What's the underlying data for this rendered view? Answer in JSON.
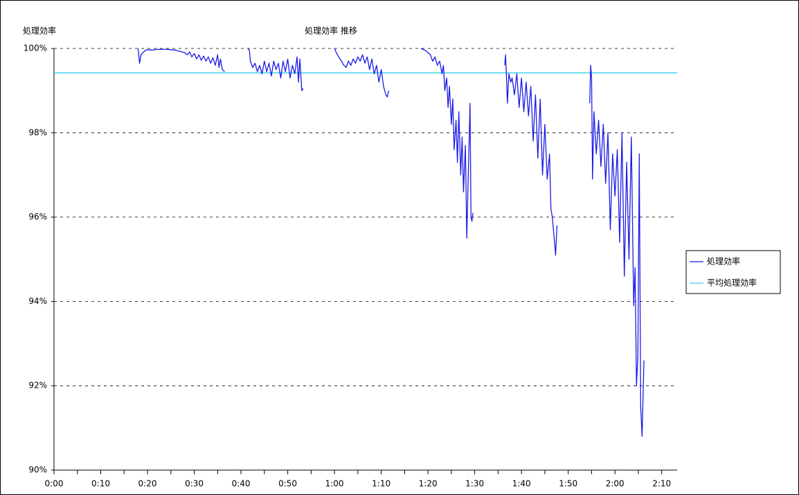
{
  "chart_data": {
    "type": "line",
    "title": "処理効率 推移",
    "y_label": "処理効率",
    "xlim": [
      0,
      133.3
    ],
    "xticks": [
      {
        "value": 0,
        "label": "0:00"
      },
      {
        "value": 10,
        "label": "0:10"
      },
      {
        "value": 20,
        "label": "0:20"
      },
      {
        "value": 30,
        "label": "0:30"
      },
      {
        "value": 40,
        "label": "0:40"
      },
      {
        "value": 50,
        "label": "0:50"
      },
      {
        "value": 60,
        "label": "1:00"
      },
      {
        "value": 70,
        "label": "1:10"
      },
      {
        "value": 80,
        "label": "1:20"
      },
      {
        "value": 90,
        "label": "1:30"
      },
      {
        "value": 100,
        "label": "1:40"
      },
      {
        "value": 110,
        "label": "1:50"
      },
      {
        "value": 120,
        "label": "2:00"
      },
      {
        "value": 130,
        "label": "2:10"
      }
    ],
    "xminorticks": [
      5,
      15,
      25,
      35,
      45,
      55,
      65,
      75,
      85,
      95,
      105,
      115,
      125
    ],
    "ylim": [
      90,
      100
    ],
    "yticks": [
      {
        "value": 90,
        "label": "90%"
      },
      {
        "value": 92,
        "label": "92%"
      },
      {
        "value": 94,
        "label": "94%"
      },
      {
        "value": 96,
        "label": "96%"
      },
      {
        "value": 98,
        "label": "98%"
      },
      {
        "value": 100,
        "label": "100%"
      }
    ],
    "grid": true,
    "legend": "right",
    "series": [
      {
        "name": "処理効率",
        "color": "#1a1ae6",
        "x": [
          18,
          18.3,
          18.6,
          19,
          19.5,
          20,
          21,
          22,
          23,
          24,
          25,
          26,
          27,
          28,
          28.5,
          29,
          29.5,
          30,
          30.5,
          31,
          31.5,
          32,
          32.5,
          33,
          33.5,
          34,
          34.5,
          35,
          35.3,
          35.6,
          36,
          36.5,
          39,
          41.5,
          41.8,
          42,
          42.5,
          43,
          43.5,
          44,
          44.5,
          45,
          45.5,
          46,
          46.5,
          47,
          47.5,
          48,
          48.5,
          49,
          49.5,
          50,
          50.5,
          51,
          51.5,
          52,
          52.3,
          52.6,
          53,
          53.3,
          56,
          60,
          60.4,
          61,
          61.5,
          62,
          62.5,
          63,
          63.5,
          64,
          64.5,
          65,
          65.5,
          66,
          66.5,
          67,
          67.5,
          68,
          68.5,
          69,
          69.5,
          70,
          70.5,
          71,
          71.3,
          71.6,
          75,
          78.5,
          79.5,
          80.5,
          81,
          81.5,
          82,
          82.5,
          83,
          83.3,
          83.6,
          84,
          84.3,
          84.6,
          85,
          85.3,
          85.6,
          86,
          86.3,
          86.6,
          87,
          87.3,
          87.6,
          88,
          88.3,
          88.6,
          89,
          89.2,
          89.4,
          89.6,
          93,
          96.4,
          96.6,
          97,
          97.3,
          97.7,
          98,
          98.5,
          99,
          99.5,
          100,
          100.5,
          101,
          101.5,
          102,
          102.5,
          103,
          103.5,
          104,
          104.5,
          105,
          105.5,
          106,
          106.3,
          106.6,
          107,
          107.3,
          107.6,
          111,
          114.6,
          114.8,
          115,
          115.2,
          115.5,
          116,
          116.5,
          117,
          117.5,
          118,
          118.5,
          119,
          119.5,
          120,
          120.5,
          121,
          121.5,
          122,
          122.5,
          123,
          123.5,
          124,
          124.3,
          124.6,
          124.9,
          125.2,
          125.5,
          125.8,
          126,
          126.2
        ],
        "values": [
          100,
          99.65,
          99.85,
          99.9,
          99.95,
          99.97,
          99.96,
          99.98,
          99.98,
          99.98,
          99.97,
          99.96,
          99.93,
          99.9,
          99.85,
          99.92,
          99.8,
          99.88,
          99.75,
          99.85,
          99.72,
          99.82,
          99.7,
          99.8,
          99.65,
          99.78,
          99.6,
          99.85,
          99.55,
          99.75,
          99.5,
          99.45,
          null,
          100,
          99.95,
          99.7,
          99.55,
          99.65,
          99.45,
          99.6,
          99.4,
          99.7,
          99.45,
          99.65,
          99.35,
          99.7,
          99.5,
          99.65,
          99.3,
          99.7,
          99.45,
          99.75,
          99.3,
          99.6,
          99.4,
          99.8,
          99.2,
          99.75,
          99.0,
          99.05,
          null,
          100,
          99.9,
          99.78,
          99.7,
          99.6,
          99.55,
          99.7,
          99.6,
          99.75,
          99.65,
          99.8,
          99.7,
          99.85,
          99.65,
          99.8,
          99.5,
          99.75,
          99.4,
          99.6,
          99.2,
          99.5,
          99.1,
          98.9,
          98.85,
          99.0,
          null,
          100,
          99.95,
          99.85,
          99.7,
          99.8,
          99.6,
          99.7,
          99.4,
          99.6,
          99.0,
          99.3,
          98.6,
          99.1,
          98.2,
          98.8,
          97.6,
          98.3,
          97.3,
          98.5,
          97.0,
          97.9,
          96.6,
          97.7,
          95.5,
          96.9,
          98.7,
          96.0,
          95.9,
          96.1,
          null,
          99.6,
          99.85,
          98.7,
          99.4,
          99.2,
          99.3,
          98.9,
          99.4,
          98.6,
          99.3,
          98.5,
          99.2,
          98.4,
          99.1,
          97.8,
          98.9,
          97.4,
          98.8,
          97.0,
          98.2,
          96.9,
          97.5,
          96.2,
          96.0,
          95.5,
          95.1,
          95.8,
          null,
          98.7,
          99.6,
          99.3,
          96.9,
          98.5,
          97.5,
          98.3,
          97.2,
          98.2,
          96.8,
          98.0,
          95.7,
          97.5,
          96.5,
          97.6,
          95.4,
          98.0,
          94.6,
          97.3,
          95.0,
          97.9,
          93.9,
          94.8,
          92.0,
          92.7,
          97.5,
          91.5,
          90.8,
          91.7,
          92.6
        ]
      },
      {
        "name": "平均処理効率",
        "color": "#33ccee",
        "x": [
          0,
          133.3
        ],
        "values": [
          99.42,
          99.42
        ]
      }
    ]
  }
}
